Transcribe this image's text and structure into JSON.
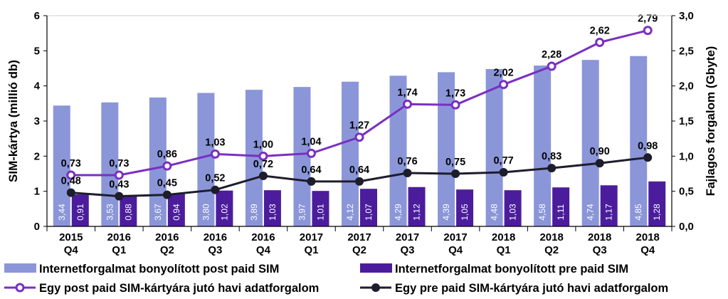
{
  "chart_data": {
    "type": "bar",
    "categories": [
      [
        "2015",
        "Q4"
      ],
      [
        "2016",
        "Q1"
      ],
      [
        "2016",
        "Q2"
      ],
      [
        "2016",
        "Q3"
      ],
      [
        "2016",
        "Q4"
      ],
      [
        "2017",
        "Q1"
      ],
      [
        "2017",
        "Q2"
      ],
      [
        "2017",
        "Q3"
      ],
      [
        "2017",
        "Q4"
      ],
      [
        "2018",
        "Q1"
      ],
      [
        "2018",
        "Q2"
      ],
      [
        "2018",
        "Q3"
      ],
      [
        "2018",
        "Q4"
      ]
    ],
    "left_axis": {
      "title": "SIM-kártya (millió db)",
      "range": [
        0,
        6
      ],
      "ticks": [
        "0",
        "1",
        "2",
        "3",
        "4",
        "5",
        "6"
      ]
    },
    "right_axis": {
      "title": "Fajlagos forgalom (Gbyte)",
      "range": [
        0,
        3
      ],
      "ticks": [
        "0,0",
        "0,5",
        "1,0",
        "1,5",
        "2,0",
        "2,5",
        "3,0"
      ]
    },
    "bar_series": [
      {
        "name": "Internetforgalmat bonyolított post paid SIM",
        "color": "#8b96d9",
        "values": [
          3.44,
          3.53,
          3.67,
          3.8,
          3.89,
          3.97,
          4.12,
          4.29,
          4.39,
          4.48,
          4.58,
          4.74,
          4.85
        ],
        "labels": [
          "3,44",
          "3,53",
          "3,67",
          "3,80",
          "3,89",
          "3,97",
          "4,12",
          "4,29",
          "4,39",
          "4,48",
          "4,58",
          "4,74",
          "4,85"
        ]
      },
      {
        "name": "Internetforgalmat bonyolított pre paid SIM",
        "color": "#4b1d9c",
        "values": [
          0.91,
          0.88,
          0.94,
          1.02,
          1.03,
          1.01,
          1.07,
          1.12,
          1.05,
          1.03,
          1.11,
          1.17,
          1.28
        ],
        "labels": [
          "0,91",
          "0,88",
          "0,94",
          "1,02",
          "1,03",
          "1,01",
          "1,07",
          "1,12",
          "1,05",
          "1,03",
          "1,11",
          "1,17",
          "1,28"
        ]
      }
    ],
    "line_series": [
      {
        "name": "Egy post paid SIM-kártyára jutó havi adatforgalom",
        "color": "#7a2fc0",
        "marker_fill": "#ffffff",
        "values": [
          0.73,
          0.73,
          0.86,
          1.03,
          1.0,
          1.04,
          1.27,
          1.74,
          1.73,
          2.02,
          2.28,
          2.62,
          2.79
        ],
        "labels": [
          "0,73",
          "0,73",
          "0,86",
          "1,03",
          "1,00",
          "1,04",
          "1,27",
          "1,74",
          "1,73",
          "2,02",
          "2,28",
          "2,62",
          "2,79"
        ]
      },
      {
        "name": "Egy pre paid SIM-kártyára jutó havi adatforgalom",
        "color": "#1d1d2b",
        "marker_fill": "#1d1d2b",
        "values": [
          0.48,
          0.43,
          0.45,
          0.52,
          0.72,
          0.64,
          0.64,
          0.76,
          0.75,
          0.77,
          0.83,
          0.9,
          0.98
        ],
        "labels": [
          "0,48",
          "0,43",
          "0,45",
          "0,52",
          "0,72",
          "0,64",
          "0,64",
          "0,76",
          "0,75",
          "0,77",
          "0,83",
          "0,90",
          "0,98"
        ]
      }
    ],
    "legend": "bottom",
    "grid": false
  }
}
